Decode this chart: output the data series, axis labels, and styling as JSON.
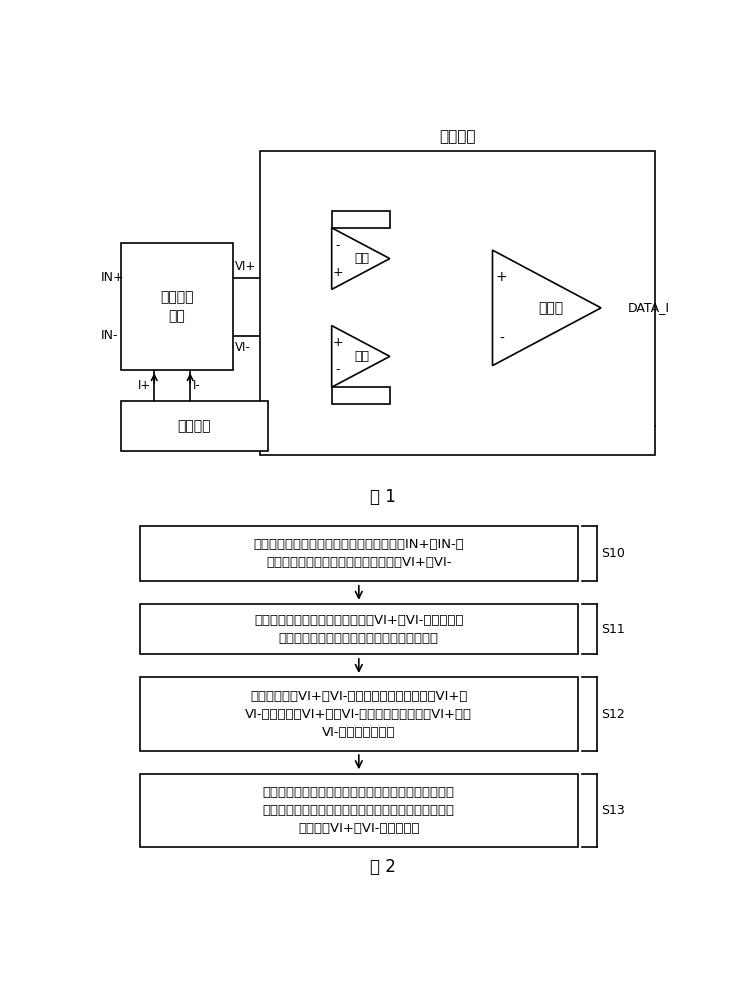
{
  "fig_width": 7.47,
  "fig_height": 10.0,
  "bg_color": "#ffffff",
  "line_color": "#000000",
  "fig1_title": "比较模块",
  "fig1_label": "图 1",
  "fig2_label": "图 2",
  "buffer_box_label": "接收缓冲\n模块",
  "control_box_label": "控制模块",
  "comparator_label": "比较器",
  "opamp1_label": "运放",
  "opamp2_label": "运放",
  "in_plus": "IN+",
  "in_minus": "IN-",
  "vi_plus": "VI+",
  "vi_minus": "VI-",
  "i_plus": "I+",
  "i_minus": "I-",
  "data_i": "DATA_I",
  "flow_steps": [
    {
      "id": "S10",
      "text": "接收缓冲模块接收可编程增益放大器输出的IN+和IN-，\n经缓冲及可变负载电阱分压处理后输出VI+和VI-"
    },
    {
      "id": "S11",
      "text": "比较模块获取接收缓冲模块输出的VI+及VI-的値，并使\n接收缓冲模块中可变负载电阱的阱値保持稳定"
    },
    {
      "id": "S12",
      "text": "比较模块滤除VI+及VI-中的毛刺，比较滤波后的VI+和\nVI-的高低，当VI+大于VI-时，输出高电平，当VI+小于\nVI-时，输出低电平"
    },
    {
      "id": "S13",
      "text": "控制模块根据比较模块输出电平的高低调整接收缓冲模\n块中可变负载电阱的阱値，使接收缓冲模块输出的直流\n共模电压VI+和VI-的差値降低"
    }
  ]
}
